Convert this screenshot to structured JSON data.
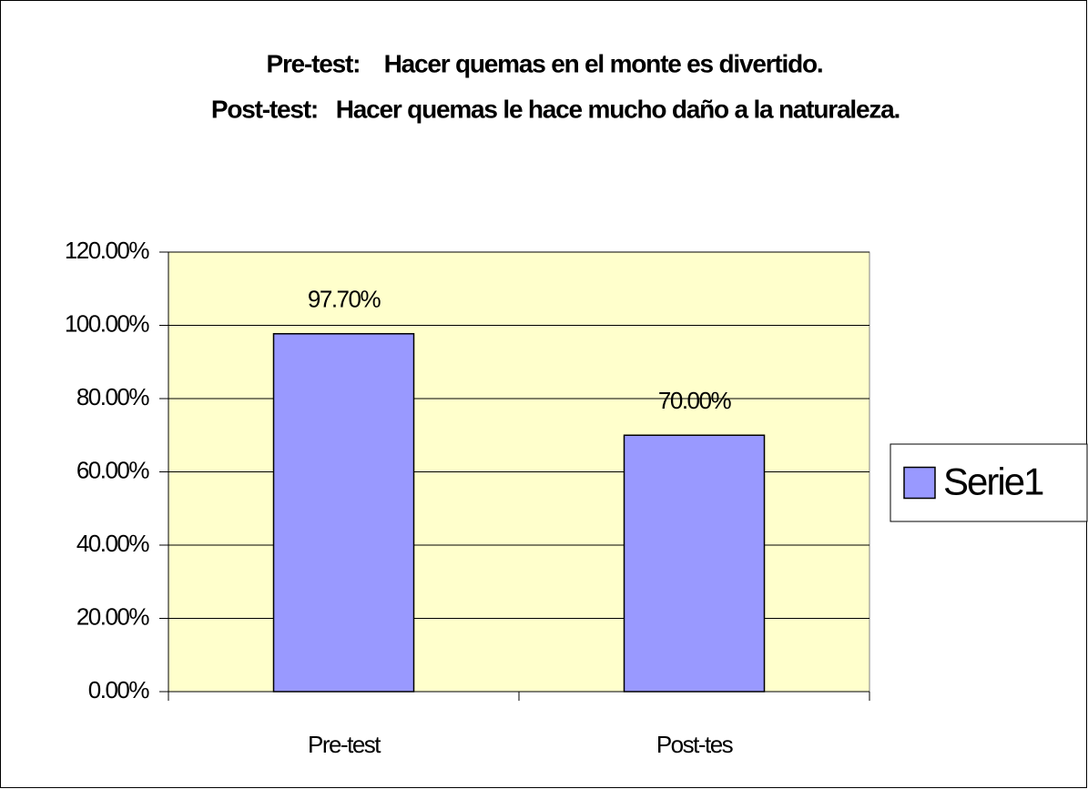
{
  "chart_data": {
    "type": "bar",
    "title": [
      "Pre-test:    Hacer quemas en el monte es divertido.",
      "Post-test:   Hacer quemas le hace mucho daño a la naturaleza."
    ],
    "categories": [
      "Pre-test",
      "Post-tes"
    ],
    "series": [
      {
        "name": "Serie1",
        "color": "#9999ff",
        "values": [
          97.7,
          70
        ],
        "value_labels": [
          "97.70%",
          "70.00%"
        ]
      }
    ],
    "ylim": [
      0,
      120
    ],
    "yticks": [
      {
        "value": 0,
        "label": "0.00%"
      },
      {
        "value": 20,
        "label": "20.00%"
      },
      {
        "value": 40,
        "label": "40.00%"
      },
      {
        "value": 60,
        "label": "60.00%"
      },
      {
        "value": 80,
        "label": "80.00%"
      },
      {
        "value": 100,
        "label": "100.00%"
      },
      {
        "value": 120,
        "label": "120.00%"
      }
    ],
    "grid": true,
    "legend": "right",
    "plot_background": "#ffffcc"
  }
}
